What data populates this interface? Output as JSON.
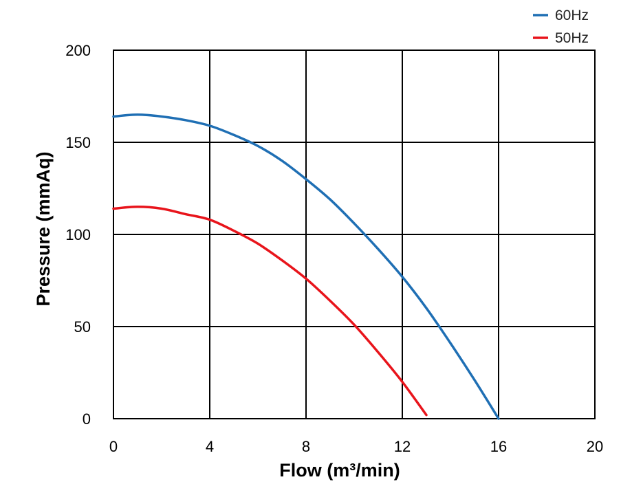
{
  "chart_data": {
    "type": "line",
    "title": "",
    "xlabel": "Flow (m³/min)",
    "ylabel": "Pressure (mmAq)",
    "xlim": [
      0,
      20
    ],
    "ylim": [
      0,
      200
    ],
    "x_ticks": [
      0,
      4,
      8,
      12,
      16,
      20
    ],
    "y_ticks": [
      0,
      50,
      100,
      150,
      200
    ],
    "x_tick_labels": [
      "0",
      "4",
      "8",
      "12",
      "16",
      "20"
    ],
    "y_tick_labels": [
      "0",
      "50",
      "100",
      "150",
      "200"
    ],
    "grid": true,
    "legend_position": "top-right",
    "series": [
      {
        "name": "60Hz",
        "color": "#1f6fb4",
        "x": [
          0,
          1,
          2,
          3,
          4,
          5,
          6,
          7,
          8,
          9,
          10,
          11,
          12,
          13,
          14,
          15,
          16
        ],
        "y": [
          164,
          165,
          164,
          162,
          159,
          154,
          148,
          140,
          130,
          119,
          106,
          92,
          77,
          60,
          41,
          21,
          0
        ]
      },
      {
        "name": "50Hz",
        "color": "#e8141b",
        "x": [
          0,
          1,
          2,
          3,
          4,
          5,
          6,
          7,
          8,
          9,
          10,
          11,
          12,
          13
        ],
        "y": [
          114,
          115,
          114,
          111,
          108,
          102,
          95,
          86,
          76,
          64,
          51,
          36,
          20,
          2
        ]
      }
    ]
  }
}
